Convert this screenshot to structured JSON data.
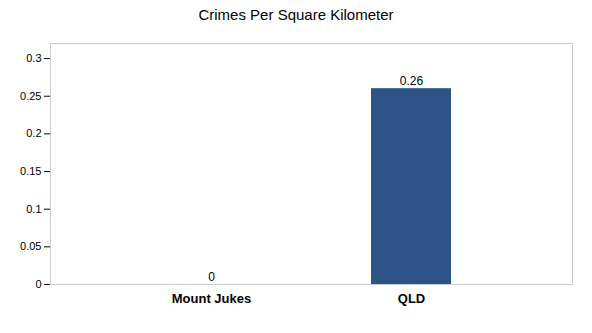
{
  "chart_data": {
    "type": "bar",
    "title": "Crimes Per Square Kilometer",
    "categories": [
      "Mount Jukes",
      "QLD"
    ],
    "values": [
      0,
      0.26
    ],
    "colors": [
      "#3d6b9e",
      "#2e5387"
    ],
    "ylim": [
      0,
      0.32
    ],
    "yticks": [
      0,
      0.05,
      0.1,
      0.15,
      0.2,
      0.25,
      0.3
    ],
    "grid": false,
    "data_labels": true
  }
}
